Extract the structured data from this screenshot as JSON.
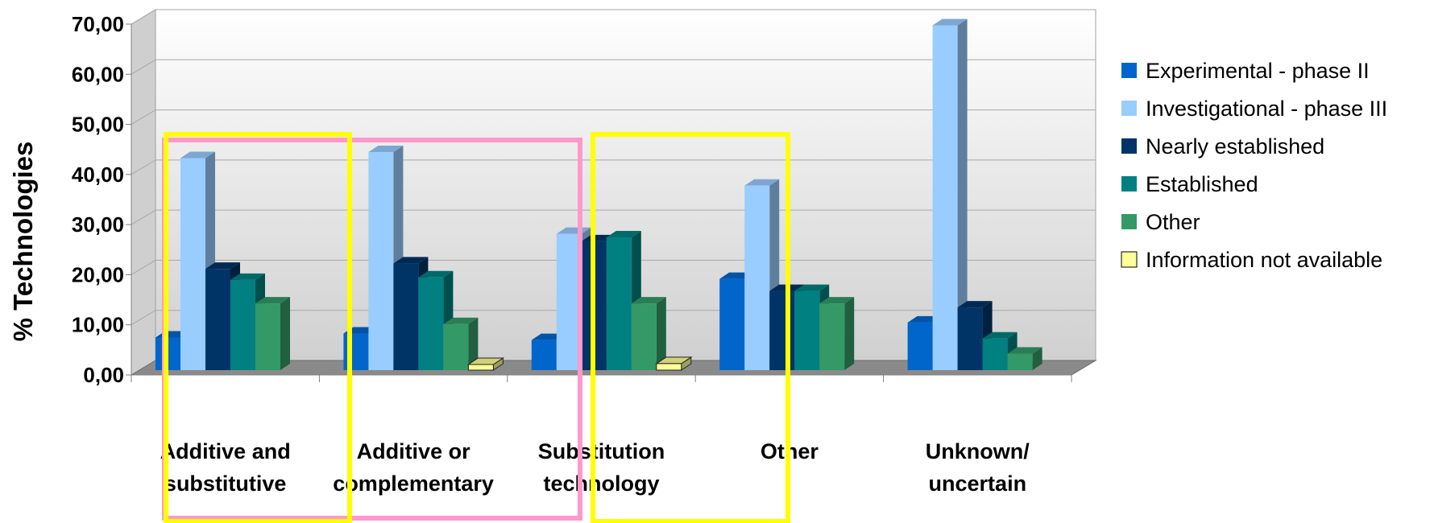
{
  "chart_data": {
    "type": "bar",
    "ylabel": "% Technologies",
    "xlabel": "",
    "ylim": [
      0,
      70
    ],
    "y_ticks": [
      "0,00",
      "10,00",
      "20,00",
      "30,00",
      "40,00",
      "50,00",
      "60,00",
      "70,00"
    ],
    "grid": true,
    "legend_position": "right",
    "categories": [
      [
        "Additive and",
        "substitutive"
      ],
      [
        "Additive or",
        "complementary"
      ],
      [
        "Substitution",
        "technology"
      ],
      [
        "Other"
      ],
      [
        "Unknown/",
        "uncertain"
      ]
    ],
    "series": [
      {
        "name": "Experimental - phase II",
        "color": "#0066CC",
        "values": [
          6.5,
          7.3,
          6.0,
          18.2,
          9.5
        ]
      },
      {
        "name": "Investigational - phase III",
        "color": "#99CCFF",
        "values": [
          42.3,
          43.5,
          27.2,
          36.8,
          68.8
        ]
      },
      {
        "name": "Nearly established",
        "color": "#003366",
        "values": [
          20.2,
          21.3,
          25.7,
          15.8,
          12.5
        ]
      },
      {
        "name": "Established",
        "color": "#008080",
        "values": [
          18.0,
          18.5,
          26.5,
          15.8,
          6.3
        ]
      },
      {
        "name": "Other",
        "color": "#339966",
        "values": [
          13.3,
          9.2,
          13.3,
          13.3,
          3.3
        ]
      },
      {
        "name": "Information not available",
        "color": "#FFFF99",
        "values": [
          0,
          0.4,
          1.3,
          0,
          0
        ]
      }
    ],
    "highlight_boxes": [
      {
        "color": "#FF99CC",
        "categories": [
          0,
          1
        ]
      },
      {
        "color": "#FFFF00",
        "categories": [
          0
        ]
      },
      {
        "color": "#FFFF00",
        "categories": [
          2
        ]
      }
    ]
  }
}
